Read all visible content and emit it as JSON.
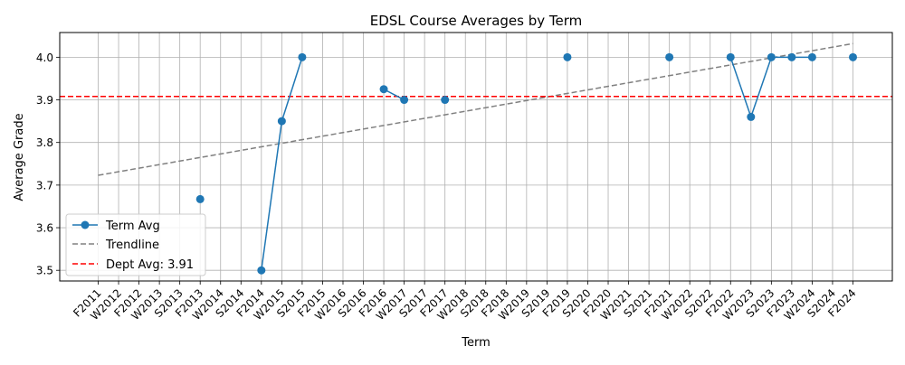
{
  "chart_data": {
    "type": "line",
    "title": "EDSL Course Averages by Term",
    "xlabel": "Term",
    "ylabel": "Average Grade",
    "categories": [
      "F2011",
      "W2012",
      "F2012",
      "W2013",
      "S2013",
      "F2013",
      "W2014",
      "S2014",
      "F2014",
      "W2015",
      "S2015",
      "F2015",
      "W2016",
      "S2016",
      "F2016",
      "W2017",
      "S2017",
      "F2017",
      "W2018",
      "S2018",
      "F2018",
      "W2019",
      "S2019",
      "F2019",
      "S2020",
      "F2020",
      "W2021",
      "S2021",
      "F2021",
      "W2022",
      "S2022",
      "F2022",
      "W2023",
      "S2023",
      "F2023",
      "W2024",
      "S2024",
      "F2024"
    ],
    "ylim": [
      3.475,
      4.058
    ],
    "yticks": [
      "3.5",
      "3.6",
      "3.7",
      "3.8",
      "3.9",
      "4.0"
    ],
    "grid": true,
    "legend_position": "lower-left",
    "series": [
      {
        "name": "Term Avg",
        "color": "#1f77b4",
        "values": [
          null,
          null,
          null,
          null,
          null,
          3.667,
          null,
          null,
          3.5,
          3.85,
          4.0,
          null,
          null,
          null,
          3.925,
          3.9,
          null,
          3.9,
          null,
          null,
          null,
          null,
          null,
          4.0,
          null,
          null,
          null,
          null,
          4.0,
          null,
          null,
          4.0,
          3.86,
          4.0,
          4.0,
          4.0,
          null,
          4.0
        ]
      },
      {
        "name": "Trendline",
        "color": "#808080",
        "style": "dashed",
        "start": 3.723,
        "end": 4.032
      },
      {
        "name": "Dept Avg: 3.91",
        "color": "#ff0000",
        "style": "dashed",
        "value": 3.908
      }
    ]
  }
}
